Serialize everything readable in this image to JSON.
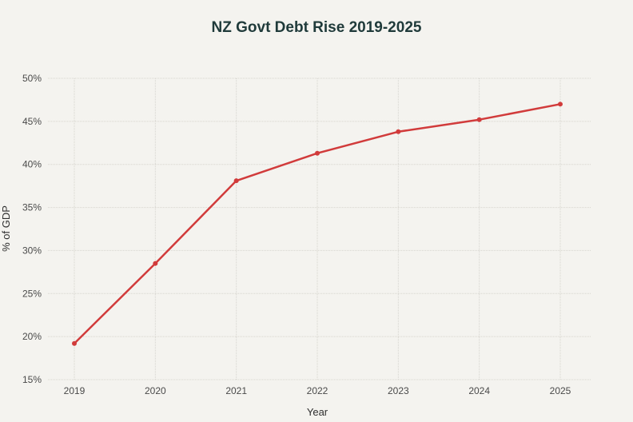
{
  "chart_data": {
    "type": "line",
    "title": "NZ Govt Debt Rise 2019-2025",
    "xlabel": "Year",
    "ylabel": "% of GDP",
    "categories": [
      "2019",
      "2020",
      "2021",
      "2022",
      "2023",
      "2024",
      "2025"
    ],
    "series": [
      {
        "values": [
          19.2,
          28.5,
          38.1,
          41.3,
          43.8,
          45.2,
          47.0
        ],
        "color": "#d13b3b"
      }
    ],
    "ylim": [
      15,
      50
    ],
    "yticks": [
      15,
      20,
      25,
      30,
      35,
      40,
      45,
      50
    ],
    "ytick_labels": [
      "15%",
      "20%",
      "25%",
      "30%",
      "35%",
      "40%",
      "45%",
      "50%"
    ],
    "grid": true,
    "legend": "none"
  }
}
